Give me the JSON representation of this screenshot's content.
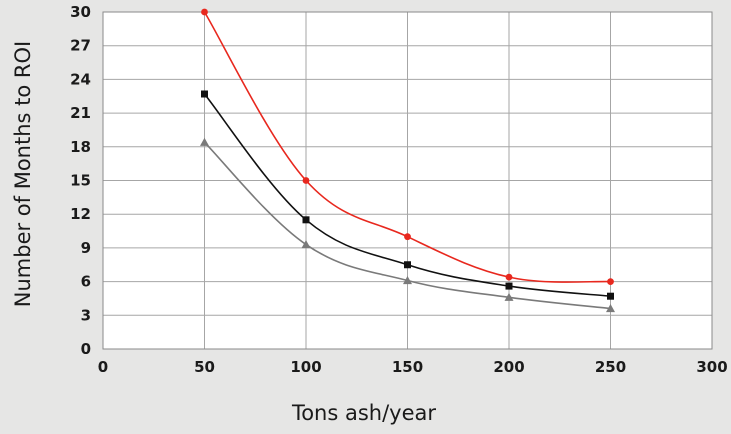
{
  "chart_data": {
    "type": "line",
    "title": "",
    "xlabel": "Tons ash/year",
    "ylabel": "Number of Months to ROI",
    "xlim": [
      0,
      300
    ],
    "ylim": [
      0,
      30
    ],
    "xticks": [
      0,
      50,
      100,
      150,
      200,
      250,
      300
    ],
    "yticks": [
      0,
      3,
      6,
      9,
      12,
      15,
      18,
      21,
      24,
      27,
      30
    ],
    "grid": true,
    "legend": "none",
    "x": [
      50,
      100,
      150,
      200,
      250
    ],
    "series": [
      {
        "color": "#e8281e",
        "marker": "circle",
        "values": [
          30,
          15,
          10,
          6.4,
          6.0
        ]
      },
      {
        "color": "#111111",
        "marker": "square",
        "values": [
          22.7,
          11.5,
          7.5,
          5.6,
          4.7
        ]
      },
      {
        "color": "#7a7a7a",
        "marker": "triangle",
        "values": [
          18.4,
          9.3,
          6.1,
          4.6,
          3.6
        ]
      }
    ]
  }
}
